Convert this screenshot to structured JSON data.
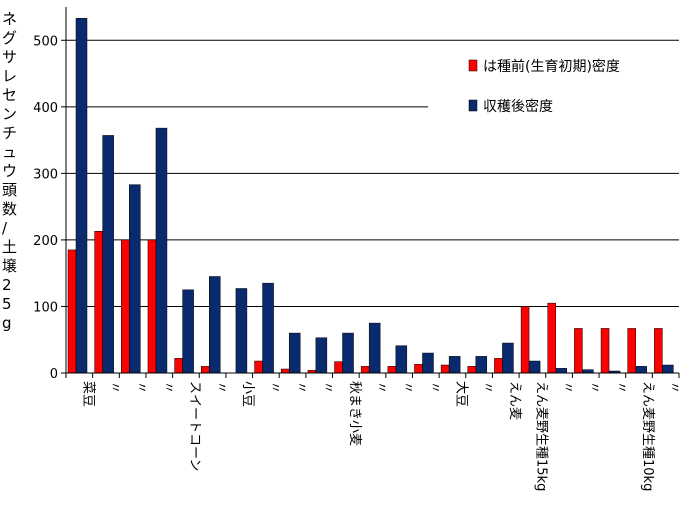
{
  "chart_data": {
    "type": "bar",
    "ylabel": "ネグサレセンチュウ頭数/土壌25g",
    "ylim": [
      0,
      550
    ],
    "yticks": [
      0,
      100,
      200,
      300,
      400,
      500
    ],
    "grid": true,
    "legend_position": "right",
    "categories": [
      "菜豆",
      "〃",
      "〃",
      "〃",
      "スイートコーン",
      "〃",
      "小豆",
      "〃",
      "〃",
      "〃",
      "秋まき小麦",
      "〃",
      "〃",
      "〃",
      "大豆",
      "〃",
      "えん麦",
      "えん麦野生種15kg",
      "〃",
      "〃",
      "〃",
      "えん麦野生種10kg",
      "〃"
    ],
    "series": [
      {
        "name": "は種前(生育初期)密度",
        "color": "#ff0000",
        "values": [
          185,
          213,
          200,
          200,
          22,
          10,
          0,
          18,
          6,
          4,
          17,
          10,
          10,
          13,
          12,
          10,
          22,
          100,
          105,
          67,
          67,
          67,
          67
        ]
      },
      {
        "name": "収穫後密度",
        "color": "#0a2a6e",
        "values": [
          533,
          357,
          283,
          368,
          125,
          145,
          127,
          135,
          60,
          53,
          60,
          75,
          41,
          30,
          25,
          25,
          45,
          18,
          7,
          5,
          3,
          10,
          12
        ]
      }
    ]
  }
}
